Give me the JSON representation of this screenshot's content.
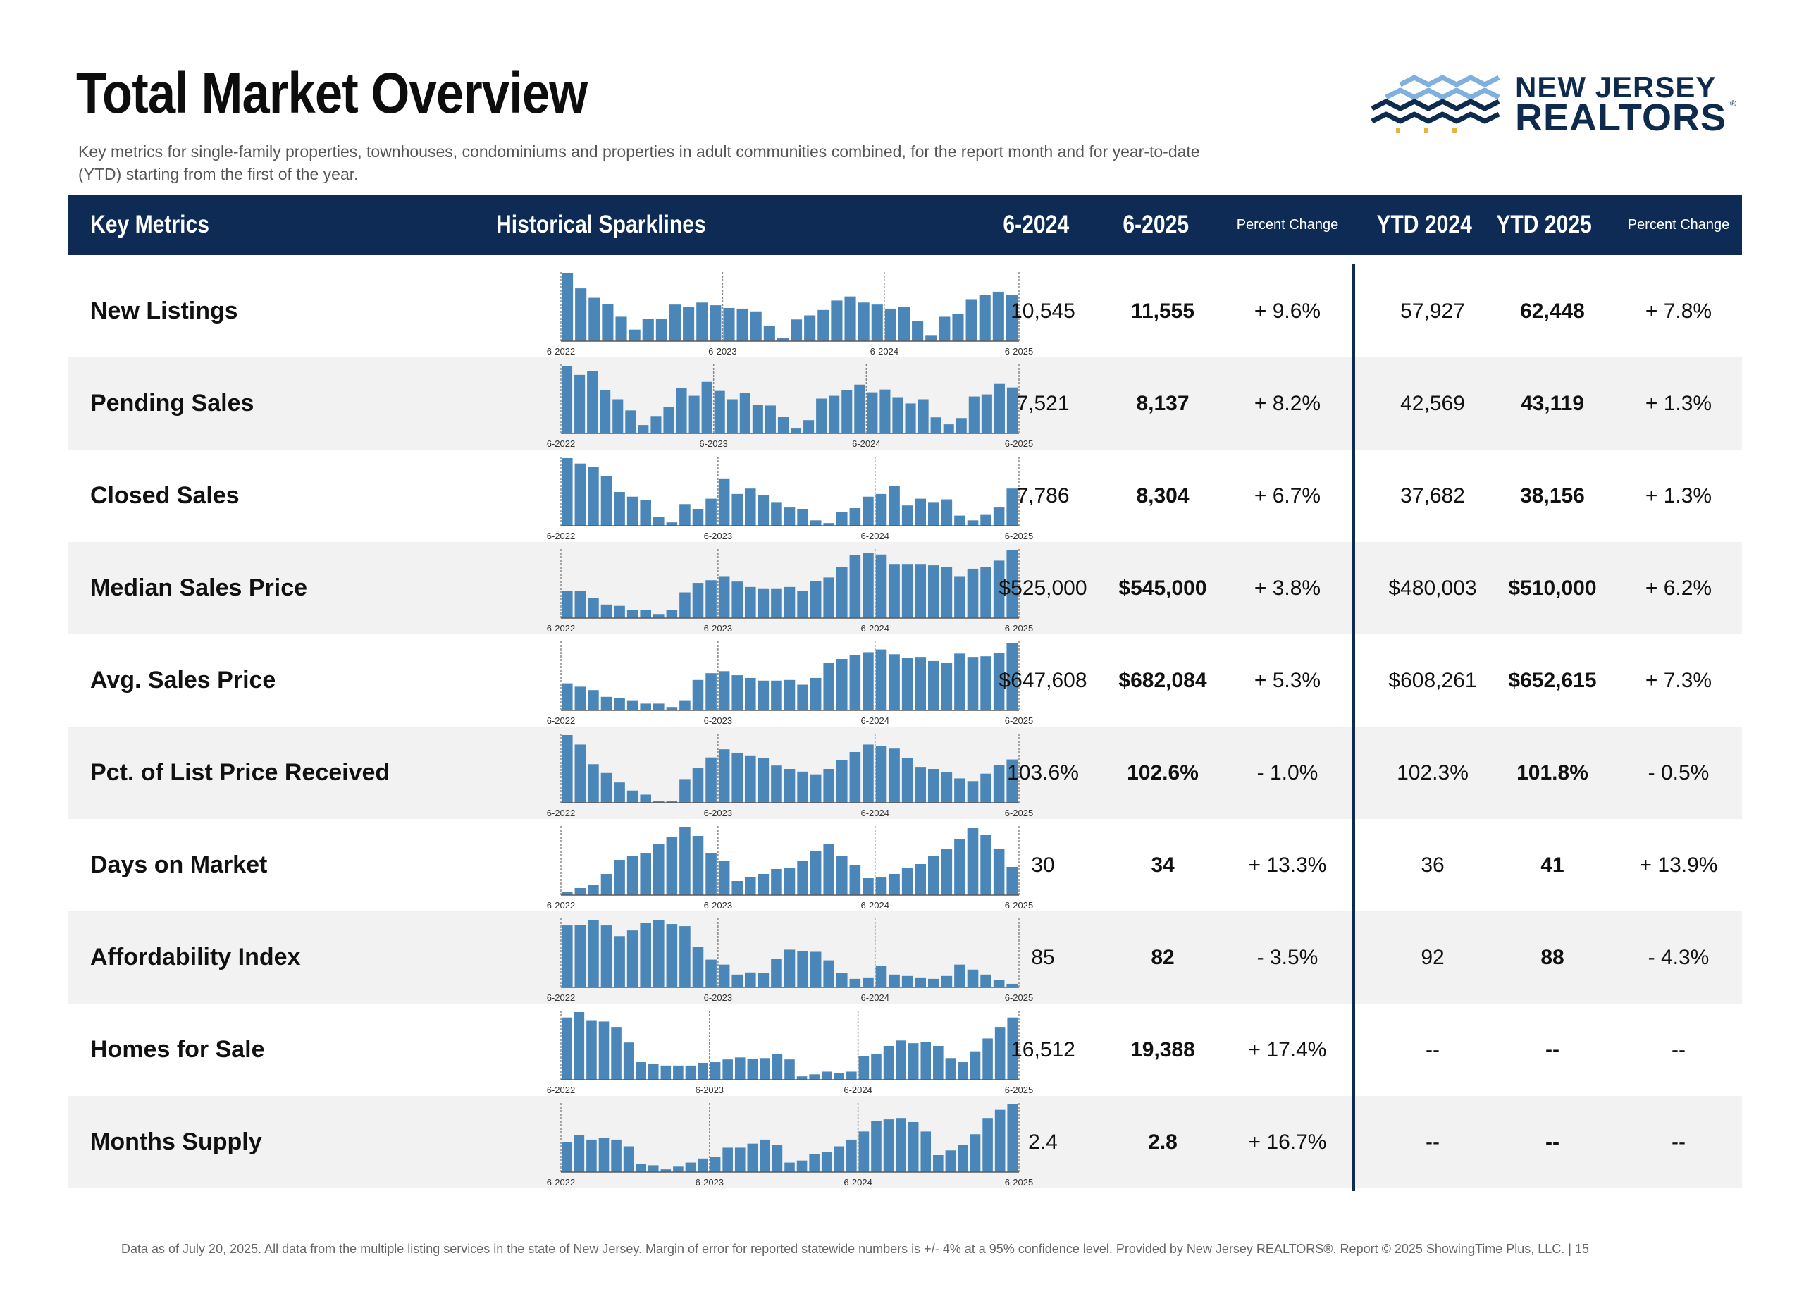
{
  "page": {
    "title": "Total Market Overview",
    "subtitle": "Key metrics for single-family properties, townhouses, condominiums and properties in adult communities combined, for the report month and for year-to-date (YTD) starting from the first of the year.",
    "footer": "Data as of July 20, 2025. All data from the multiple listing services in the state of New Jersey. Margin of error for reported statewide numbers is +/- 4% at a 95% confidence level. Provided by New Jersey REALTORS®. Report © 2025 ShowingTime Plus, LLC. | 15"
  },
  "logo": {
    "line1": "NEW JERSEY",
    "line2": "REALTORS",
    "reg_mark": "®",
    "colors": {
      "navy": "#0e2a4c",
      "light_blue": "#7fb0de",
      "gold": "#e8b33c"
    }
  },
  "colors": {
    "header_bg": "#0d2b55",
    "bar": "#4a86b8",
    "row_shade": "#f2f2f2"
  },
  "header": {
    "key_metrics": "Key Metrics",
    "sparklines": "Historical Sparklines",
    "m2024": "6-2024",
    "m2025": "6-2025",
    "pct_change": "Percent Change",
    "ytd2024": "YTD 2024",
    "ytd2025": "YTD 2025",
    "ytd_pct_change": "Percent Change"
  },
  "sparkline_ticks": [
    "6-2022",
    "6-2023",
    "6-2024",
    "6-2025"
  ],
  "rows": [
    {
      "name": "New Listings",
      "m2024": "10,545",
      "m2025": "11,555",
      "pct": "+ 9.6%",
      "ytd2024": "57,927",
      "ytd2025": "62,448",
      "ytd_pct": "+ 7.8%"
    },
    {
      "name": "Pending Sales",
      "m2024": "7,521",
      "m2025": "8,137",
      "pct": "+ 8.2%",
      "ytd2024": "42,569",
      "ytd2025": "43,119",
      "ytd_pct": "+ 1.3%"
    },
    {
      "name": "Closed Sales",
      "m2024": "7,786",
      "m2025": "8,304",
      "pct": "+ 6.7%",
      "ytd2024": "37,682",
      "ytd2025": "38,156",
      "ytd_pct": "+ 1.3%"
    },
    {
      "name": "Median Sales Price",
      "m2024": "$525,000",
      "m2025": "$545,000",
      "pct": "+ 3.8%",
      "ytd2024": "$480,003",
      "ytd2025": "$510,000",
      "ytd_pct": "+ 6.2%"
    },
    {
      "name": "Avg. Sales Price",
      "m2024": "$647,608",
      "m2025": "$682,084",
      "pct": "+ 5.3%",
      "ytd2024": "$608,261",
      "ytd2025": "$652,615",
      "ytd_pct": "+ 7.3%"
    },
    {
      "name": "Pct. of List Price Received",
      "m2024": "103.6%",
      "m2025": "102.6%",
      "pct": "- 1.0%",
      "ytd2024": "102.3%",
      "ytd2025": "101.8%",
      "ytd_pct": "- 0.5%"
    },
    {
      "name": "Days on Market",
      "m2024": "30",
      "m2025": "34",
      "pct": "+ 13.3%",
      "ytd2024": "36",
      "ytd2025": "41",
      "ytd_pct": "+ 13.9%"
    },
    {
      "name": "Affordability Index",
      "m2024": "85",
      "m2025": "82",
      "pct": "- 3.5%",
      "ytd2024": "92",
      "ytd2025": "88",
      "ytd_pct": "- 4.3%"
    },
    {
      "name": "Homes for Sale",
      "m2024": "16,512",
      "m2025": "19,388",
      "pct": "+ 17.4%",
      "ytd2024": "--",
      "ytd2025": "--",
      "ytd_pct": "--"
    },
    {
      "name": "Months Supply",
      "m2024": "2.4",
      "m2025": "2.8",
      "pct": "+ 16.7%",
      "ytd2024": "--",
      "ytd2025": "--",
      "ytd_pct": "--"
    }
  ],
  "chart_data": [
    {
      "type": "bar",
      "metric": "New Listings",
      "x_ticks": [
        "6-2022",
        "6-2023",
        "6-2024",
        "6-2025"
      ],
      "values": [
        100,
        78,
        64,
        55,
        36,
        17,
        33,
        33,
        54,
        50,
        57,
        53,
        49,
        48,
        44,
        22,
        5,
        32,
        38,
        46,
        60,
        66,
        57,
        54,
        48,
        50,
        30,
        8,
        36,
        40,
        62,
        68,
        73,
        68
      ]
    },
    {
      "type": "bar",
      "metric": "Pending Sales",
      "x_ticks": [
        "6-2022",
        "6-2023",
        "6-2024",
        "6-2025"
      ],
      "values": [
        97,
        84,
        89,
        62,
        49,
        33,
        12,
        25,
        38,
        65,
        54,
        74,
        61,
        49,
        58,
        41,
        40,
        24,
        8,
        19,
        50,
        54,
        62,
        70,
        59,
        63,
        52,
        43,
        49,
        23,
        13,
        22,
        53,
        56,
        71,
        66
      ]
    },
    {
      "type": "bar",
      "metric": "Closed Sales",
      "x_ticks": [
        "6-2022",
        "6-2023",
        "6-2024",
        "6-2025"
      ],
      "values": [
        100,
        92,
        87,
        73,
        50,
        43,
        38,
        13,
        5,
        32,
        25,
        40,
        70,
        47,
        55,
        45,
        35,
        27,
        25,
        8,
        4,
        20,
        26,
        43,
        47,
        59,
        30,
        40,
        35,
        39,
        15,
        8,
        16,
        27,
        55
      ]
    },
    {
      "type": "bar",
      "metric": "Median Sales Price",
      "x_ticks": [
        "6-2022",
        "6-2023",
        "6-2024",
        "6-2025"
      ],
      "values": [
        40,
        40,
        30,
        20,
        18,
        12,
        12,
        6,
        12,
        38,
        52,
        56,
        62,
        54,
        46,
        44,
        44,
        46,
        40,
        55,
        60,
        75,
        93,
        96,
        94,
        80,
        80,
        80,
        78,
        76,
        62,
        73,
        75,
        85,
        100
      ]
    },
    {
      "type": "bar",
      "metric": "Avg. Sales Price",
      "x_ticks": [
        "6-2022",
        "6-2023",
        "6-2024",
        "6-2025"
      ],
      "values": [
        40,
        35,
        30,
        20,
        18,
        15,
        10,
        10,
        5,
        15,
        45,
        55,
        58,
        52,
        48,
        44,
        44,
        45,
        38,
        48,
        70,
        76,
        82,
        86,
        90,
        83,
        78,
        79,
        73,
        70,
        84,
        79,
        80,
        85,
        100
      ]
    },
    {
      "type": "bar",
      "metric": "Pct. of List Price Received",
      "x_ticks": [
        "6-2022",
        "6-2023",
        "6-2024",
        "6-2025"
      ],
      "values": [
        100,
        86,
        57,
        44,
        30,
        18,
        12,
        3,
        3,
        35,
        52,
        67,
        79,
        74,
        70,
        66,
        55,
        50,
        46,
        42,
        50,
        63,
        75,
        86,
        84,
        80,
        66,
        53,
        50,
        45,
        36,
        32,
        43,
        56,
        64
      ]
    },
    {
      "type": "bar",
      "metric": "Days on Market",
      "x_ticks": [
        "6-2022",
        "6-2023",
        "6-2024",
        "6-2025"
      ],
      "values": [
        5,
        10,
        15,
        30,
        50,
        55,
        60,
        72,
        82,
        96,
        84,
        60,
        48,
        20,
        25,
        30,
        37,
        38,
        48,
        63,
        73,
        55,
        43,
        24,
        25,
        30,
        39,
        44,
        55,
        65,
        80,
        95,
        85,
        65,
        40
      ]
    },
    {
      "type": "bar",
      "metric": "Affordability Index",
      "x_ticks": [
        "6-2022",
        "6-2023",
        "6-2024",
        "6-2025"
      ],
      "values": [
        87,
        88,
        95,
        87,
        72,
        80,
        91,
        95,
        89,
        86,
        57,
        39,
        32,
        18,
        21,
        20,
        40,
        53,
        51,
        50,
        38,
        20,
        12,
        14,
        30,
        18,
        16,
        14,
        12,
        16,
        32,
        25,
        18,
        10,
        5
      ]
    },
    {
      "type": "bar",
      "metric": "Homes for Sale",
      "x_ticks": [
        "6-2022",
        "6-2023",
        "6-2024",
        "6-2025"
      ],
      "values": [
        92,
        100,
        88,
        86,
        78,
        55,
        26,
        24,
        21,
        21,
        21,
        25,
        26,
        30,
        33,
        31,
        32,
        38,
        30,
        5,
        8,
        12,
        10,
        12,
        35,
        38,
        50,
        58,
        54,
        56,
        50,
        32,
        26,
        42,
        61,
        78,
        92
      ]
    },
    {
      "type": "bar",
      "metric": "Months Supply",
      "x_ticks": [
        "6-2022",
        "6-2023",
        "6-2024",
        "6-2025"
      ],
      "values": [
        44,
        55,
        48,
        50,
        48,
        38,
        12,
        10,
        4,
        8,
        14,
        20,
        22,
        36,
        36,
        42,
        48,
        40,
        14,
        17,
        27,
        30,
        38,
        48,
        60,
        75,
        78,
        80,
        74,
        60,
        25,
        32,
        40,
        56,
        80,
        92,
        100
      ]
    }
  ]
}
